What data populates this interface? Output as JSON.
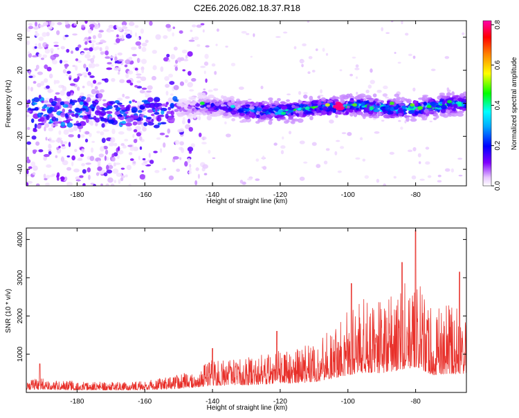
{
  "title": "C2E6.2026.082.18.37.R18",
  "chart_data": [
    {
      "type": "heatmap",
      "xlabel": "Height of straight line (km)",
      "ylabel": "Frequency (Hz)",
      "xlim": [
        -195,
        -65
      ],
      "ylim": [
        -50,
        50
      ],
      "xticks": [
        -180,
        -160,
        -140,
        -120,
        -100,
        -80
      ],
      "yticks": [
        -40,
        -20,
        0,
        20,
        40
      ],
      "colorbar": {
        "label": "Normalized spectral amplitude",
        "range": [
          0,
          0.82
        ],
        "ticks": [
          0.0,
          0.2,
          0.4,
          0.6,
          0.8
        ],
        "tick_labels": [
          "0.0",
          "0.2",
          "0.4",
          "0.6",
          "0.8"
        ],
        "colormap": [
          "#ffffff",
          "#e8c8ff",
          "#8000ff",
          "#0000ff",
          "#00ffff",
          "#00ff00",
          "#ffff00",
          "#ff8000",
          "#ff0000",
          "#ff00aa"
        ]
      },
      "features": [
        {
          "description": "diffuse noise",
          "x_range": [
            -195,
            -150
          ],
          "frequency_range": [
            -50,
            50
          ],
          "amplitude": 0.05
        },
        {
          "description": "signal band",
          "x_range": [
            -150,
            -65
          ],
          "frequency_center": -2,
          "bandwidth": 8,
          "peak_x": -103,
          "peak_amplitude": 0.8
        }
      ]
    },
    {
      "type": "line",
      "xlabel": "Height of straight line (km)",
      "ylabel": "SNR (10 * v/v)",
      "xlim": [
        -195,
        -65
      ],
      "ylim": [
        0,
        4300
      ],
      "xticks": [
        -180,
        -160,
        -140,
        -120,
        -100,
        -80
      ],
      "yticks": [
        1000,
        2000,
        3000,
        4000
      ],
      "color": "#e8302a",
      "x": [
        -195,
        -190,
        -185,
        -180,
        -175,
        -170,
        -165,
        -160,
        -155,
        -150,
        -145,
        -140,
        -135,
        -130,
        -125,
        -120,
        -115,
        -110,
        -105,
        -100,
        -95,
        -90,
        -85,
        -80,
        -75,
        -70,
        -65
      ],
      "y": [
        200,
        220,
        190,
        180,
        185,
        170,
        175,
        190,
        230,
        280,
        380,
        520,
        520,
        550,
        600,
        680,
        700,
        780,
        1000,
        1300,
        1500,
        1450,
        1650,
        1900,
        1300,
        1400,
        1350
      ],
      "peaks": [
        {
          "x": -191,
          "y": 750
        },
        {
          "x": -140,
          "y": 1150
        },
        {
          "x": -121,
          "y": 1600
        },
        {
          "x": -99,
          "y": 2850
        },
        {
          "x": -84,
          "y": 3400
        },
        {
          "x": -80,
          "y": 4250
        },
        {
          "x": -67,
          "y": 3150
        }
      ]
    }
  ]
}
